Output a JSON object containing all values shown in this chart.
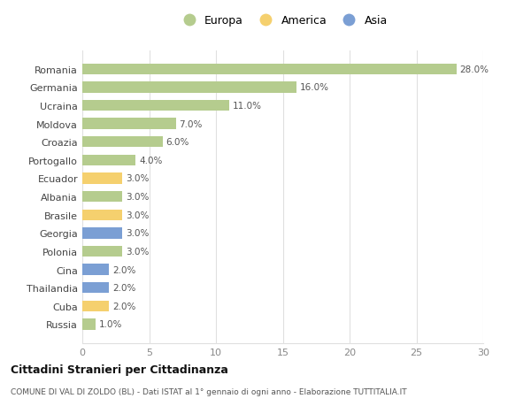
{
  "categories": [
    "Romania",
    "Germania",
    "Ucraina",
    "Moldova",
    "Croazia",
    "Portogallo",
    "Ecuador",
    "Albania",
    "Brasile",
    "Georgia",
    "Polonia",
    "Cina",
    "Thailandia",
    "Cuba",
    "Russia"
  ],
  "values": [
    28.0,
    16.0,
    11.0,
    7.0,
    6.0,
    4.0,
    3.0,
    3.0,
    3.0,
    3.0,
    3.0,
    2.0,
    2.0,
    2.0,
    1.0
  ],
  "colors": [
    "#b5cc8e",
    "#b5cc8e",
    "#b5cc8e",
    "#b5cc8e",
    "#b5cc8e",
    "#b5cc8e",
    "#f5d06e",
    "#b5cc8e",
    "#f5d06e",
    "#7b9fd4",
    "#b5cc8e",
    "#7b9fd4",
    "#7b9fd4",
    "#f5d06e",
    "#b5cc8e"
  ],
  "legend": [
    {
      "label": "Europa",
      "color": "#b5cc8e"
    },
    {
      "label": "America",
      "color": "#f5d06e"
    },
    {
      "label": "Asia",
      "color": "#7b9fd4"
    }
  ],
  "xlim": [
    0,
    30
  ],
  "xticks": [
    0,
    5,
    10,
    15,
    20,
    25,
    30
  ],
  "title_main": "Cittadini Stranieri per Cittadinanza",
  "title_sub": "COMUNE DI VAL DI ZOLDO (BL) - Dati ISTAT al 1° gennaio di ogni anno - Elaborazione TUTTITALIA.IT",
  "background_color": "#ffffff",
  "grid_color": "#e0e0e0",
  "bar_label_color": "#555555",
  "tick_color": "#888888"
}
